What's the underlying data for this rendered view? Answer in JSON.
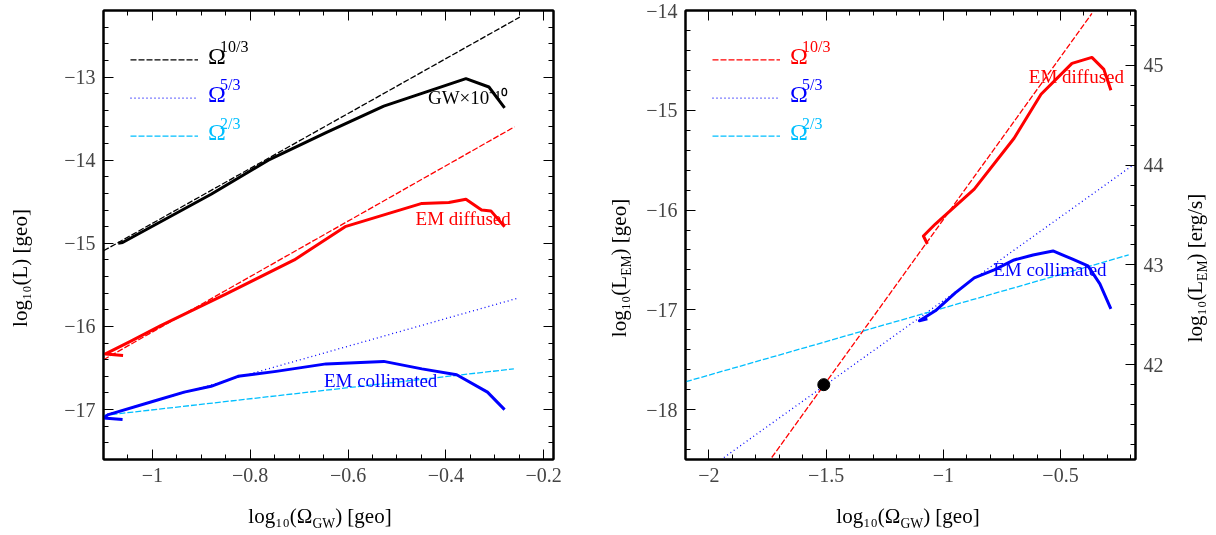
{
  "chart_data": [
    {
      "type": "line",
      "xlabel": "log₁₀(Ω$_{GW}$) [geo]",
      "ylabel": "log₁₀(L) [geo]",
      "xlim": [
        -1.1,
        -0.18
      ],
      "ylim": [
        -17.6,
        -12.2
      ],
      "xticks": [
        -1,
        -0.8,
        -0.6,
        -0.4,
        -0.2
      ],
      "yticks": [
        -13,
        -14,
        -15,
        -16,
        -17
      ],
      "grid": false,
      "legend": "top left",
      "series": [
        {
          "name": "Ω$^{10/3}$",
          "color": "#000000",
          "line_style": "dashed",
          "x": [
            -1.1,
            -0.249
          ],
          "values": [
            -15.09,
            -12.28
          ]
        },
        {
          "color": "#ff0000",
          "line_style": "dashed",
          "x": [
            -1.1,
            -0.26
          ],
          "values": [
            -16.4,
            -13.6
          ]
        },
        {
          "name": "Ω$^{5/3}$",
          "color": "#0000ff",
          "line_style": "dotted",
          "x": [
            -1.1,
            -0.253
          ],
          "values": [
            -17.07,
            -15.66
          ]
        },
        {
          "name": "Ω$^{2/3}$",
          "color": "#00bfff",
          "line_style": "dashed",
          "x": [
            -1.1,
            -0.261
          ],
          "values": [
            -17.07,
            -16.51
          ]
        },
        {
          "name": "GW×10⁻¹⁰",
          "color": "#000000",
          "line_style": "solid",
          "x": [
            -1.07,
            -1.061,
            -0.88,
            -0.763,
            -0.645,
            -0.527,
            -0.359,
            -0.312,
            -0.28
          ],
          "values": [
            -15.0,
            -14.99,
            -14.41,
            -14.0,
            -13.67,
            -13.35,
            -13.02,
            -13.12,
            -13.37
          ]
        },
        {
          "name": "EM diffused",
          "color": "#ff0000",
          "line_style": "solid",
          "x": [
            -1.06,
            -1.096,
            -1.045,
            -0.983,
            -0.85,
            -0.71,
            -0.606,
            -0.449,
            -0.394,
            -0.359,
            -0.327,
            -0.308,
            -0.28
          ],
          "values": [
            -16.35,
            -16.33,
            -16.18,
            -15.99,
            -15.61,
            -15.2,
            -14.8,
            -14.52,
            -14.51,
            -14.47,
            -14.6,
            -14.61,
            -14.8
          ]
        },
        {
          "name": "EM collimated",
          "color": "#0000ff",
          "line_style": "solid",
          "x": [
            -1.061,
            -1.1,
            -1.09,
            -0.998,
            -0.935,
            -0.88,
            -0.825,
            -0.747,
            -0.645,
            -0.527,
            -0.449,
            -0.378,
            -0.315,
            -0.28
          ],
          "values": [
            -17.12,
            -17.1,
            -17.06,
            -16.9,
            -16.79,
            -16.72,
            -16.6,
            -16.54,
            -16.45,
            -16.42,
            -16.51,
            -16.58,
            -16.79,
            -17.0
          ]
        }
      ]
    },
    {
      "type": "line",
      "xlabel": "log₁₀(Ω$_{GW}$) [geo]",
      "ylabel": "log₁₀(L$_{EM}$) [geo]",
      "y2label": "log₁₀(L$_{EM}$) [erg/s]",
      "xlim": [
        -2.1,
        -0.18
      ],
      "ylim": [
        -18.5,
        -14
      ],
      "y2lim": [
        41.05,
        45.55
      ],
      "xticks": [
        -2,
        -1.5,
        -1,
        -0.5
      ],
      "yticks": [
        -14,
        -15,
        -16,
        -17,
        -18
      ],
      "y2ticks": [
        42,
        43,
        44,
        45
      ],
      "grid": false,
      "legend": "top left",
      "series": [
        {
          "name": "Ω$^{10/3}$",
          "color": "#ff0000",
          "line_style": "dashed",
          "x": [
            -1.732,
            -0.366
          ],
          "values": [
            -18.48,
            -14.03
          ]
        },
        {
          "name": "Ω$^{5/3}$",
          "color": "#0000ff",
          "line_style": "dotted",
          "x": [
            -1.936,
            -0.191
          ],
          "values": [
            -18.48,
            -15.55
          ]
        },
        {
          "name": "Ω$^{2/3}$",
          "color": "#00bfff",
          "line_style": "dashed",
          "x": [
            -2.098,
            -0.209
          ],
          "values": [
            -17.72,
            -16.45
          ]
        },
        {
          "name": "EM diffused",
          "color": "#ff0000",
          "line_style": "solid",
          "x": [
            -1.068,
            -1.085,
            -1.034,
            -0.868,
            -0.698,
            -0.583,
            -0.451,
            -0.366,
            -0.315,
            -0.285
          ],
          "values": [
            -16.34,
            -16.26,
            -16.14,
            -15.79,
            -15.28,
            -14.84,
            -14.53,
            -14.47,
            -14.59,
            -14.8
          ]
        },
        {
          "name": "EM collimated",
          "color": "#0000ff",
          "line_style": "solid",
          "x": [
            -1.068,
            -1.102,
            -1.034,
            -0.949,
            -0.868,
            -0.783,
            -0.698,
            -0.617,
            -0.532,
            -0.451,
            -0.383,
            -0.332,
            -0.285
          ],
          "values": [
            -17.09,
            -17.11,
            -17.01,
            -16.83,
            -16.68,
            -16.6,
            -16.5,
            -16.45,
            -16.41,
            -16.49,
            -16.56,
            -16.74,
            -16.99
          ]
        },
        {
          "type": "scatter",
          "marker": "circle",
          "color": "#000000",
          "x": [
            -1.51
          ],
          "values": [
            -17.75
          ]
        }
      ]
    }
  ]
}
